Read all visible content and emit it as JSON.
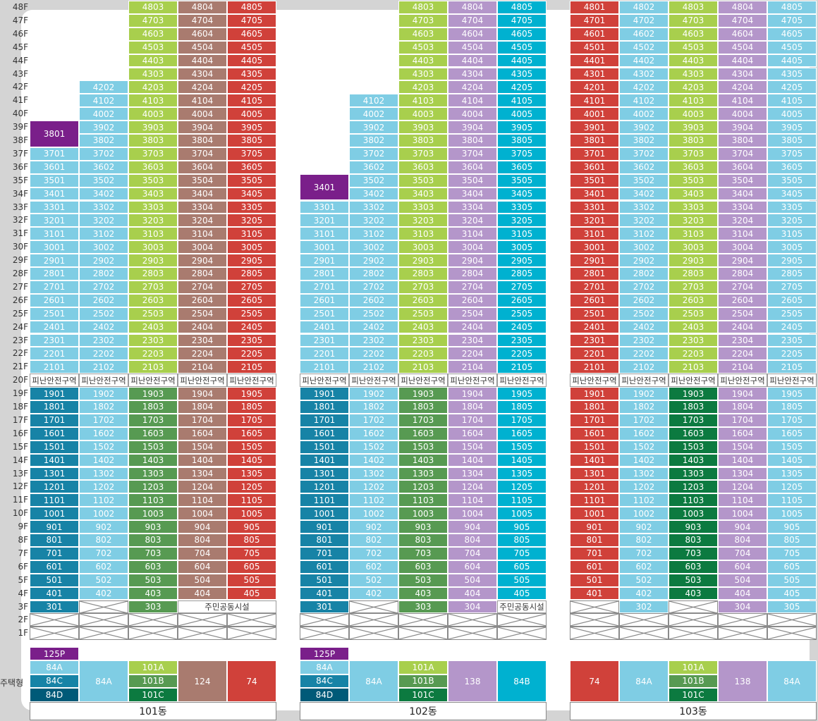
{
  "floors_label_suffix": "F",
  "unit_type_row_label": "주택형",
  "refuge_label": "피난안전구역",
  "facility_label": "주민공동시설",
  "colors": {
    "light_blue": "#7fcde4",
    "cyan": "#00b1d0",
    "light_green": "#a8cf4d",
    "mid_green": "#579a52",
    "dark_green": "#0c7a40",
    "brown": "#a97b6f",
    "red": "#d0413a",
    "purple": "#b496ca",
    "dark_purple": "#7a1f8a",
    "teal": "#1783a6",
    "dark_teal": "#005a78"
  },
  "buildings": [
    {
      "name": "101동",
      "columns": [
        {
          "line": "01",
          "top_floor": 37,
          "upper_color": "light_blue",
          "lower_color": "teal",
          "floor3": "301",
          "special": {
            "label": "3801",
            "color": "dark_purple",
            "floors": [
              38,
              39
            ]
          }
        },
        {
          "line": "02",
          "top_floor": 42,
          "upper_color": "light_blue",
          "lower_color": "light_blue",
          "floor3": "x"
        },
        {
          "line": "03",
          "top_floor": 48,
          "upper_color": "light_green",
          "lower_color": "mid_green",
          "floor3": "303"
        },
        {
          "line": "04",
          "top_floor": 48,
          "upper_color": "brown",
          "lower_color": "brown",
          "floor3": "facility"
        },
        {
          "line": "05",
          "top_floor": 48,
          "upper_color": "red",
          "lower_color": "red",
          "floor3": "facility"
        }
      ],
      "types": [
        {
          "col": 0,
          "rows": [
            {
              "label": "125P",
              "color": "dark_purple",
              "pos": "above"
            },
            {
              "label": "84A",
              "color": "light_blue"
            },
            {
              "label": "84C",
              "color": "teal"
            },
            {
              "label": "84D",
              "color": "dark_teal"
            }
          ]
        },
        {
          "col": 1,
          "rows": [
            {
              "label": "84A",
              "color": "light_blue"
            }
          ]
        },
        {
          "col": 2,
          "rows": [
            {
              "label": "101A",
              "color": "light_green"
            },
            {
              "label": "101B",
              "color": "mid_green"
            },
            {
              "label": "101C",
              "color": "dark_green"
            }
          ]
        },
        {
          "col": 3,
          "rows": [
            {
              "label": "124",
              "color": "brown"
            }
          ]
        },
        {
          "col": 4,
          "rows": [
            {
              "label": "74",
              "color": "red"
            }
          ]
        }
      ]
    },
    {
      "name": "102동",
      "columns": [
        {
          "line": "01",
          "top_floor": 33,
          "upper_color": "light_blue",
          "lower_color": "teal",
          "floor3": "301",
          "special": {
            "label": "3401",
            "color": "dark_purple",
            "floors": [
              34,
              35
            ]
          }
        },
        {
          "line": "02",
          "top_floor": 41,
          "upper_color": "light_blue",
          "lower_color": "light_blue",
          "floor3": "x"
        },
        {
          "line": "03",
          "top_floor": 48,
          "upper_color": "light_green",
          "lower_color": "mid_green",
          "floor3": "303"
        },
        {
          "line": "04",
          "top_floor": 48,
          "upper_color": "purple",
          "lower_color": "purple",
          "floor3": "304"
        },
        {
          "line": "05",
          "top_floor": 48,
          "upper_color": "cyan",
          "lower_color": "cyan",
          "floor3": "facility"
        }
      ],
      "types": [
        {
          "col": 0,
          "rows": [
            {
              "label": "125P",
              "color": "dark_purple",
              "pos": "above"
            },
            {
              "label": "84A",
              "color": "light_blue"
            },
            {
              "label": "84C",
              "color": "teal"
            },
            {
              "label": "84D",
              "color": "dark_teal"
            }
          ]
        },
        {
          "col": 1,
          "rows": [
            {
              "label": "84A",
              "color": "light_blue"
            }
          ]
        },
        {
          "col": 2,
          "rows": [
            {
              "label": "101A",
              "color": "light_green"
            },
            {
              "label": "101B",
              "color": "mid_green"
            },
            {
              "label": "101C",
              "color": "dark_green"
            }
          ]
        },
        {
          "col": 3,
          "rows": [
            {
              "label": "138",
              "color": "purple"
            }
          ]
        },
        {
          "col": 4,
          "rows": [
            {
              "label": "84B",
              "color": "cyan"
            }
          ]
        }
      ]
    },
    {
      "name": "103동",
      "columns": [
        {
          "line": "01",
          "top_floor": 48,
          "upper_color": "red",
          "lower_color": "red",
          "floor3": "x4"
        },
        {
          "line": "02",
          "top_floor": 48,
          "upper_color": "light_blue",
          "lower_color": "light_blue",
          "floor3": "302"
        },
        {
          "line": "03",
          "top_floor": 48,
          "upper_color": "light_green",
          "lower_color": "dark_green",
          "floor3": "x"
        },
        {
          "line": "04",
          "top_floor": 48,
          "upper_color": "purple",
          "lower_color": "purple",
          "floor3": "304"
        },
        {
          "line": "05",
          "top_floor": 48,
          "upper_color": "light_blue",
          "lower_color": "light_blue",
          "floor3": "305"
        }
      ],
      "types": [
        {
          "col": 0,
          "rows": [
            {
              "label": "74",
              "color": "red"
            }
          ]
        },
        {
          "col": 1,
          "rows": [
            {
              "label": "84A",
              "color": "light_blue"
            }
          ]
        },
        {
          "col": 2,
          "rows": [
            {
              "label": "101A",
              "color": "light_green"
            },
            {
              "label": "101B",
              "color": "mid_green"
            },
            {
              "label": "101C",
              "color": "dark_green"
            }
          ]
        },
        {
          "col": 3,
          "rows": [
            {
              "label": "138",
              "color": "purple"
            }
          ]
        },
        {
          "col": 4,
          "rows": [
            {
              "label": "84A",
              "color": "light_blue"
            }
          ]
        }
      ]
    }
  ]
}
